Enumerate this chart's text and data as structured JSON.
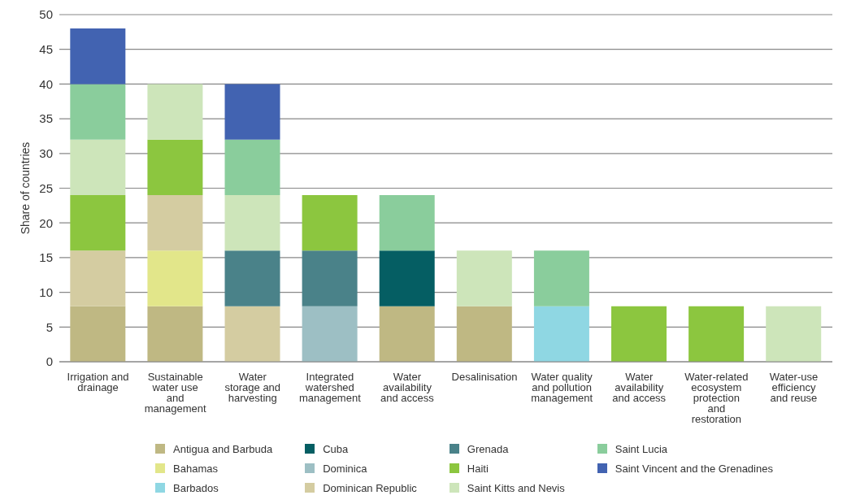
{
  "chart_data": {
    "type": "bar",
    "stacked": true,
    "ylabel": "Share of countries",
    "categories": [
      "Irrigation and drainage",
      "Sustainable water use and management",
      "Water storage and harvesting",
      "Integrated watershed management",
      "Water availability and access",
      "Desalinisation",
      "Water quality and pollution management",
      "Water availability and access",
      "Water-related ecosystem protection and restoration",
      "Water-use efficiency and reuse"
    ],
    "series": [
      {
        "name": "Antigua and Barbuda",
        "color": "#bfb883",
        "values": [
          8,
          8,
          null,
          null,
          8,
          8,
          null,
          null,
          null,
          null
        ]
      },
      {
        "name": "Bahamas",
        "color": "#e2e68a",
        "values": [
          null,
          8,
          null,
          null,
          null,
          null,
          null,
          null,
          null,
          null
        ]
      },
      {
        "name": "Barbados",
        "color": "#8fd7e3",
        "values": [
          null,
          null,
          null,
          null,
          null,
          null,
          8,
          null,
          null,
          null
        ]
      },
      {
        "name": "Cuba",
        "color": "#055e63",
        "values": [
          null,
          null,
          null,
          null,
          8,
          null,
          null,
          null,
          null,
          null
        ]
      },
      {
        "name": "Dominica",
        "color": "#9dbfc4",
        "values": [
          null,
          null,
          null,
          8,
          null,
          null,
          null,
          null,
          null,
          null
        ]
      },
      {
        "name": "Dominican Republic",
        "color": "#d4cca1",
        "values": [
          8,
          8,
          8,
          null,
          null,
          null,
          null,
          null,
          null,
          null
        ]
      },
      {
        "name": "Grenada",
        "color": "#4a8289",
        "values": [
          null,
          null,
          8,
          8,
          null,
          null,
          null,
          null,
          null,
          null
        ]
      },
      {
        "name": "Haiti",
        "color": "#8cc63f",
        "values": [
          8,
          8,
          null,
          8,
          null,
          null,
          null,
          8,
          8,
          null
        ]
      },
      {
        "name": "Saint Kitts and Nevis",
        "color": "#cde5ba",
        "values": [
          8,
          8,
          8,
          null,
          null,
          8,
          null,
          null,
          null,
          8
        ]
      },
      {
        "name": "Saint Lucia",
        "color": "#8acd9c",
        "values": [
          8,
          null,
          8,
          null,
          8,
          null,
          8,
          null,
          null,
          null
        ]
      },
      {
        "name": "Saint Vincent and the Grenadines",
        "color": "#4263b1",
        "values": [
          8,
          null,
          8,
          null,
          null,
          null,
          null,
          null,
          null,
          null
        ]
      }
    ],
    "ylim": [
      0,
      50
    ],
    "yticks": [
      0,
      5,
      10,
      15,
      20,
      25,
      30,
      35,
      40,
      45,
      50
    ],
    "grid": "y",
    "legend": "bottom"
  }
}
